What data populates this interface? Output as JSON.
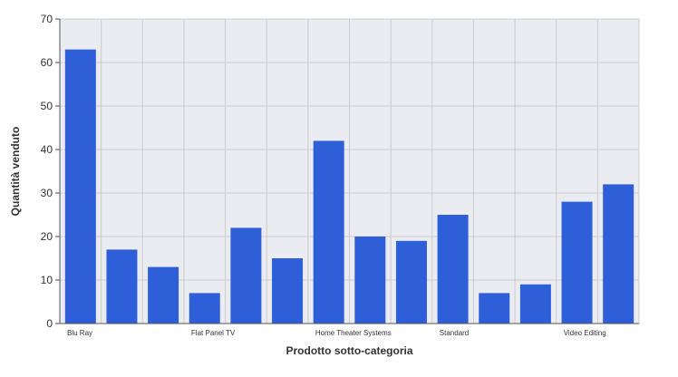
{
  "chart_data": {
    "type": "bar",
    "categories": [
      "Blu Ray",
      "",
      "",
      "Flat Panel TV",
      "",
      "",
      "Home Theater Systems",
      "",
      "",
      "Standard",
      "",
      "",
      "Video Editing",
      ""
    ],
    "values": [
      63,
      17,
      13,
      7,
      22,
      15,
      42,
      20,
      19,
      25,
      7,
      9,
      28,
      32
    ],
    "xlabel": "Prodotto sotto-categoria",
    "ylabel": "Quantità venduto",
    "ylim": [
      0,
      70
    ],
    "yticks": [
      0,
      10,
      20,
      30,
      40,
      50,
      60,
      70
    ],
    "grid": true,
    "legend": "none",
    "colors": {
      "bar": "#2e5fd8",
      "plot_background": "#ebebf2",
      "grid": "#cccccc",
      "axis": "#555555",
      "text": "#333333"
    }
  }
}
